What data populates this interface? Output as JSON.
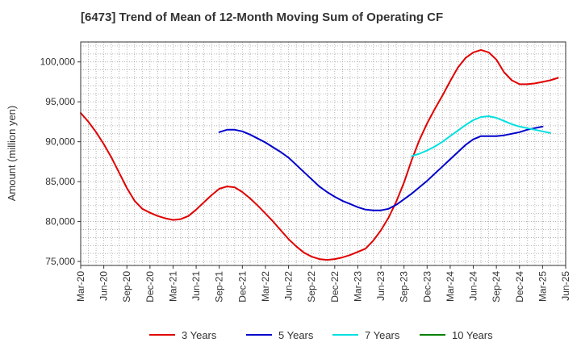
{
  "chart_data": {
    "type": "line",
    "title": "[6473]  Trend of Mean of 12-Month Moving Sum of Operating CF",
    "xlabel": "",
    "ylabel": "Amount (million yen)",
    "ylim": [
      74500,
      102500
    ],
    "yticks": [
      75000,
      80000,
      85000,
      90000,
      95000,
      100000
    ],
    "ytick_labels": [
      "75,000",
      "80,000",
      "85,000",
      "90,000",
      "95,000",
      "100,000"
    ],
    "x_range_months": [
      0,
      63
    ],
    "xtick_labels": [
      "Mar-20",
      "Jun-20",
      "Sep-20",
      "Dec-20",
      "Mar-21",
      "Jun-21",
      "Sep-21",
      "Dec-21",
      "Mar-22",
      "Jun-22",
      "Sep-22",
      "Dec-22",
      "Mar-23",
      "Jun-23",
      "Sep-23",
      "Dec-23",
      "Mar-24",
      "Jun-24",
      "Sep-24",
      "Dec-24",
      "Mar-25",
      "Jun-25"
    ],
    "xtick_months": [
      0,
      3,
      6,
      9,
      12,
      15,
      18,
      21,
      24,
      27,
      30,
      33,
      36,
      39,
      42,
      45,
      48,
      51,
      54,
      57,
      60,
      63
    ],
    "grid": true,
    "legend_position": "bottom",
    "series": [
      {
        "name": "3 Years",
        "color": "#e00000",
        "start_month": 0,
        "values": [
          93600,
          92500,
          91200,
          89700,
          88000,
          86100,
          84200,
          82600,
          81600,
          81100,
          80700,
          80400,
          80200,
          80300,
          80700,
          81500,
          82400,
          83300,
          84100,
          84400,
          84300,
          83700,
          82900,
          82000,
          81000,
          80000,
          78900,
          77800,
          76900,
          76100,
          75600,
          75300,
          75200,
          75300,
          75500,
          75800,
          76200,
          76600,
          77600,
          78900,
          80500,
          82500,
          84900,
          87700,
          90200,
          92300,
          94100,
          95800,
          97600,
          99300,
          100500,
          101200,
          101500,
          101200,
          100300,
          98700,
          97700,
          97200,
          97200,
          97300,
          97500,
          97700,
          98000
        ]
      },
      {
        "name": "5 Years",
        "color": "#0000cc",
        "start_month": 18,
        "values": [
          91200,
          91500,
          91500,
          91300,
          90900,
          90400,
          89900,
          89300,
          88700,
          88000,
          87100,
          86200,
          85300,
          84400,
          83700,
          83100,
          82600,
          82200,
          81800,
          81500,
          81400,
          81400,
          81600,
          82100,
          82800,
          83500,
          84300,
          85100,
          86000,
          86900,
          87800,
          88700,
          89600,
          90300,
          90700,
          90700,
          90700,
          90800,
          91000,
          91200,
          91500,
          91700,
          91900
        ]
      },
      {
        "name": "7 Years",
        "color": "#00e0e0",
        "start_month": 43,
        "values": [
          88200,
          88500,
          88900,
          89400,
          90000,
          90700,
          91400,
          92100,
          92700,
          93100,
          93200,
          93000,
          92600,
          92200,
          91900,
          91700,
          91500,
          91300,
          91100
        ]
      },
      {
        "name": "10 Years",
        "color": "#008000",
        "start_month": 0,
        "values": []
      }
    ]
  }
}
